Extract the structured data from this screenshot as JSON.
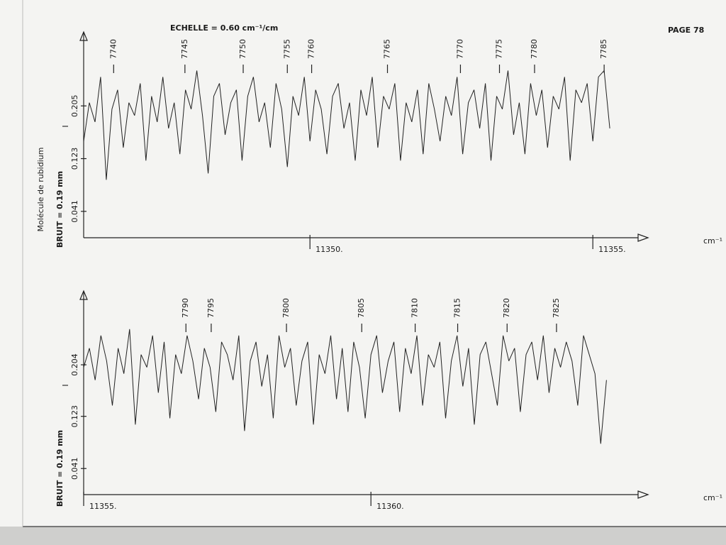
{
  "header": {
    "title": "ECHELLE = 0.60 cm⁻¹/cm",
    "page": "PAGE 78"
  },
  "chart_data": [
    {
      "type": "line",
      "color": "#222222",
      "sample_label": "Molécule de rubidium",
      "noise_label": "BRUIT = 0.19 mm",
      "y_label": "I",
      "x_label": "cm⁻¹",
      "xlim": [
        11346,
        11355.8
      ],
      "ylim": [
        0,
        0.32
      ],
      "xticks": [
        {
          "value": 11350,
          "label": "11350."
        },
        {
          "value": 11355,
          "label": "11355."
        }
      ],
      "yticks": [
        0.041,
        0.123,
        0.205
      ],
      "annotations": [
        {
          "x": 11346.53,
          "text": "7740"
        },
        {
          "x": 11347.79,
          "text": "7745"
        },
        {
          "x": 11348.82,
          "text": "7750"
        },
        {
          "x": 11349.6,
          "text": "7755"
        },
        {
          "x": 11350.03,
          "text": "7760"
        },
        {
          "x": 11351.37,
          "text": "7765"
        },
        {
          "x": 11352.66,
          "text": "7770"
        },
        {
          "x": 11353.35,
          "text": "7775"
        },
        {
          "x": 11353.97,
          "text": "7780"
        },
        {
          "x": 11355.2,
          "text": "7785"
        }
      ],
      "x": [
        11346.0,
        11346.1,
        11346.2,
        11346.3,
        11346.4,
        11346.5,
        11346.6,
        11346.7,
        11346.8,
        11346.9,
        11347.0,
        11347.1,
        11347.2,
        11347.3,
        11347.4,
        11347.5,
        11347.6,
        11347.7,
        11347.8,
        11347.9,
        11348.0,
        11348.1,
        11348.2,
        11348.3,
        11348.4,
        11348.5,
        11348.6,
        11348.7,
        11348.8,
        11348.9,
        11349.0,
        11349.1,
        11349.2,
        11349.3,
        11349.4,
        11349.5,
        11349.6,
        11349.7,
        11349.8,
        11349.9,
        11350.0,
        11350.1,
        11350.2,
        11350.3,
        11350.4,
        11350.5,
        11350.6,
        11350.7,
        11350.8,
        11350.9,
        11351.0,
        11351.1,
        11351.2,
        11351.3,
        11351.4,
        11351.5,
        11351.6,
        11351.7,
        11351.8,
        11351.9,
        11352.0,
        11352.1,
        11352.2,
        11352.3,
        11352.4,
        11352.5,
        11352.6,
        11352.7,
        11352.8,
        11352.9,
        11353.0,
        11353.1,
        11353.2,
        11353.3,
        11353.4,
        11353.5,
        11353.6,
        11353.7,
        11353.8,
        11353.9,
        11354.0,
        11354.1,
        11354.2,
        11354.3,
        11354.4,
        11354.5,
        11354.6,
        11354.7,
        11354.8,
        11354.9,
        11355.0,
        11355.1,
        11355.2,
        11355.3
      ],
      "values": [
        0.15,
        0.21,
        0.18,
        0.25,
        0.09,
        0.2,
        0.23,
        0.14,
        0.21,
        0.19,
        0.24,
        0.12,
        0.22,
        0.18,
        0.25,
        0.17,
        0.21,
        0.13,
        0.23,
        0.2,
        0.26,
        0.19,
        0.1,
        0.22,
        0.24,
        0.16,
        0.21,
        0.23,
        0.12,
        0.22,
        0.25,
        0.18,
        0.21,
        0.14,
        0.24,
        0.2,
        0.11,
        0.22,
        0.19,
        0.25,
        0.15,
        0.23,
        0.2,
        0.13,
        0.22,
        0.24,
        0.17,
        0.21,
        0.12,
        0.23,
        0.19,
        0.25,
        0.14,
        0.22,
        0.2,
        0.24,
        0.12,
        0.21,
        0.18,
        0.23,
        0.13,
        0.24,
        0.2,
        0.15,
        0.22,
        0.19,
        0.25,
        0.13,
        0.21,
        0.23,
        0.17,
        0.24,
        0.12,
        0.22,
        0.2,
        0.26,
        0.16,
        0.21,
        0.13,
        0.24,
        0.19,
        0.23,
        0.14,
        0.22,
        0.2,
        0.25,
        0.12,
        0.23,
        0.21,
        0.24,
        0.15,
        0.25,
        0.26,
        0.17
      ]
    },
    {
      "type": "line",
      "color": "#222222",
      "noise_label": "BRUIT = 0.19 mm",
      "y_label": "I",
      "x_label": "cm⁻¹",
      "xlim": [
        11355,
        11364.65
      ],
      "ylim": [
        0,
        0.32
      ],
      "xticks": [
        {
          "value": 11355,
          "label": "11355."
        },
        {
          "value": 11360,
          "label": "11360."
        }
      ],
      "yticks": [
        0.041,
        0.123,
        0.204
      ],
      "annotations": [
        {
          "x": 11356.78,
          "text": "7790"
        },
        {
          "x": 11357.22,
          "text": "7795"
        },
        {
          "x": 11358.53,
          "text": "7800"
        },
        {
          "x": 11359.84,
          "text": "7805"
        },
        {
          "x": 11360.77,
          "text": "7810"
        },
        {
          "x": 11361.51,
          "text": "7815"
        },
        {
          "x": 11362.37,
          "text": "7820"
        },
        {
          "x": 11363.23,
          "text": "7825"
        }
      ],
      "x": [
        11355.0,
        11355.1,
        11355.2,
        11355.3,
        11355.4,
        11355.5,
        11355.6,
        11355.7,
        11355.8,
        11355.9,
        11356.0,
        11356.1,
        11356.2,
        11356.3,
        11356.4,
        11356.5,
        11356.6,
        11356.7,
        11356.8,
        11356.9,
        11357.0,
        11357.1,
        11357.2,
        11357.3,
        11357.4,
        11357.5,
        11357.6,
        11357.7,
        11357.8,
        11357.9,
        11358.0,
        11358.1,
        11358.2,
        11358.3,
        11358.4,
        11358.5,
        11358.6,
        11358.7,
        11358.8,
        11358.9,
        11359.0,
        11359.1,
        11359.2,
        11359.3,
        11359.4,
        11359.5,
        11359.6,
        11359.7,
        11359.8,
        11359.9,
        11360.0,
        11360.1,
        11360.2,
        11360.3,
        11360.4,
        11360.5,
        11360.6,
        11360.7,
        11360.8,
        11360.9,
        11361.0,
        11361.1,
        11361.2,
        11361.3,
        11361.4,
        11361.5,
        11361.6,
        11361.7,
        11361.8,
        11361.9,
        11362.0,
        11362.1,
        11362.2,
        11362.3,
        11362.4,
        11362.5,
        11362.6,
        11362.7,
        11362.8,
        11362.9,
        11363.0,
        11363.1,
        11363.2,
        11363.3,
        11363.4,
        11363.5,
        11363.6,
        11363.7,
        11363.8,
        11363.9,
        11364.0,
        11364.1
      ],
      "values": [
        0.2,
        0.23,
        0.18,
        0.25,
        0.21,
        0.14,
        0.23,
        0.19,
        0.26,
        0.11,
        0.22,
        0.2,
        0.25,
        0.16,
        0.24,
        0.12,
        0.22,
        0.19,
        0.25,
        0.21,
        0.15,
        0.23,
        0.2,
        0.13,
        0.24,
        0.22,
        0.18,
        0.25,
        0.1,
        0.21,
        0.24,
        0.17,
        0.22,
        0.12,
        0.25,
        0.2,
        0.23,
        0.14,
        0.21,
        0.24,
        0.11,
        0.22,
        0.19,
        0.25,
        0.15,
        0.23,
        0.13,
        0.24,
        0.2,
        0.12,
        0.22,
        0.25,
        0.16,
        0.21,
        0.24,
        0.13,
        0.23,
        0.19,
        0.25,
        0.14,
        0.22,
        0.2,
        0.24,
        0.12,
        0.21,
        0.25,
        0.17,
        0.23,
        0.11,
        0.22,
        0.24,
        0.19,
        0.14,
        0.25,
        0.21,
        0.23,
        0.13,
        0.22,
        0.24,
        0.18,
        0.25,
        0.16,
        0.23,
        0.2,
        0.24,
        0.21,
        0.14,
        0.25,
        0.22,
        0.19,
        0.08,
        0.18
      ]
    }
  ]
}
